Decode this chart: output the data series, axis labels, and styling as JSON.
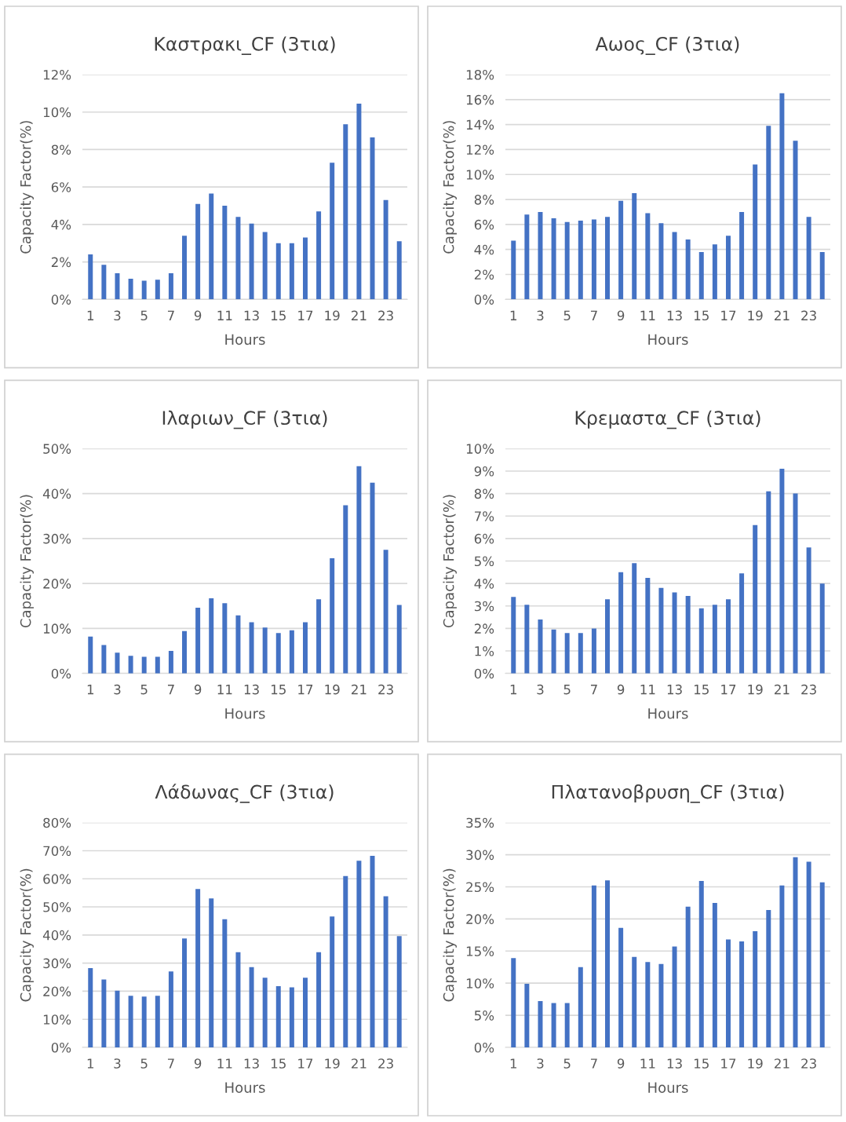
{
  "chart_data": [
    {
      "type": "bar",
      "title": "Καστρακι_CF (3τια)",
      "xlabel": "Hours",
      "ylabel": "Capacity Factor(%)",
      "color": "#4472c4",
      "grid": "y",
      "categories": [
        "1",
        null,
        "3",
        null,
        "5",
        null,
        "7",
        null,
        "9",
        null,
        "11",
        null,
        "13",
        null,
        "15",
        null,
        "17",
        null,
        "19",
        null,
        "21",
        null,
        "23",
        null
      ],
      "values": [
        2.4,
        1.85,
        1.4,
        1.1,
        1.0,
        1.05,
        1.4,
        3.4,
        5.1,
        5.65,
        5.0,
        4.4,
        4.05,
        3.6,
        3.0,
        3.0,
        3.3,
        4.7,
        7.3,
        9.35,
        10.45,
        8.65,
        5.3,
        3.1
      ],
      "ylim": [
        0,
        12
      ],
      "yticks": [
        {
          "value": 0,
          "label": "0%"
        },
        {
          "value": 2,
          "label": "2%"
        },
        {
          "value": 4,
          "label": "4%"
        },
        {
          "value": 6,
          "label": "6%"
        },
        {
          "value": 8,
          "label": "8%"
        },
        {
          "value": 10,
          "label": "10%"
        },
        {
          "value": 12,
          "label": "12%"
        }
      ]
    },
    {
      "type": "bar",
      "title": "Αωος_CF (3τια)",
      "xlabel": "Hours",
      "ylabel": "Capacity Factor(%)",
      "color": "#4472c4",
      "grid": "y",
      "categories": [
        "1",
        null,
        "3",
        null,
        "5",
        null,
        "7",
        null,
        "9",
        null,
        "11",
        null,
        "13",
        null,
        "15",
        null,
        "17",
        null,
        "19",
        null,
        "21",
        null,
        "23",
        null
      ],
      "values": [
        4.7,
        6.8,
        7.0,
        6.5,
        6.2,
        6.3,
        6.4,
        6.6,
        7.9,
        8.5,
        6.9,
        6.1,
        5.4,
        4.8,
        3.8,
        4.4,
        5.1,
        7.0,
        10.8,
        13.9,
        16.5,
        12.7,
        6.6,
        3.8
      ],
      "ylim": [
        0,
        18
      ],
      "yticks": [
        {
          "value": 0,
          "label": "0%"
        },
        {
          "value": 2,
          "label": "2%"
        },
        {
          "value": 4,
          "label": "4%"
        },
        {
          "value": 6,
          "label": "6%"
        },
        {
          "value": 8,
          "label": "8%"
        },
        {
          "value": 10,
          "label": "10%"
        },
        {
          "value": 12,
          "label": "12%"
        },
        {
          "value": 14,
          "label": "14%"
        },
        {
          "value": 16,
          "label": "16%"
        },
        {
          "value": 18,
          "label": "18%"
        }
      ]
    },
    {
      "type": "bar",
      "title": "Ιλαριων_CF (3τια)",
      "xlabel": "Hours",
      "ylabel": "Capacity Factor(%)",
      "color": "#4472c4",
      "grid": "y",
      "categories": [
        "1",
        null,
        "3",
        null,
        "5",
        null,
        "7",
        null,
        "9",
        null,
        "11",
        null,
        "13",
        null,
        "15",
        null,
        "17",
        null,
        "19",
        null,
        "21",
        null,
        "23",
        null
      ],
      "values": [
        8.2,
        6.3,
        4.6,
        3.9,
        3.7,
        3.7,
        5.0,
        9.4,
        14.6,
        16.7,
        15.6,
        12.9,
        11.4,
        10.2,
        9.0,
        9.6,
        11.4,
        16.5,
        25.6,
        37.4,
        46.1,
        42.4,
        27.5,
        15.2
      ],
      "ylim": [
        0,
        50
      ],
      "yticks": [
        {
          "value": 0,
          "label": "0%"
        },
        {
          "value": 10,
          "label": "10%"
        },
        {
          "value": 20,
          "label": "20%"
        },
        {
          "value": 30,
          "label": "30%"
        },
        {
          "value": 40,
          "label": "40%"
        },
        {
          "value": 50,
          "label": "50%"
        }
      ]
    },
    {
      "type": "bar",
      "title": "Κρεμαστα_CF (3τια)",
      "xlabel": "Hours",
      "ylabel": "Capacity Factor(%)",
      "color": "#4472c4",
      "grid": "y",
      "categories": [
        "1",
        null,
        "3",
        null,
        "5",
        null,
        "7",
        null,
        "9",
        null,
        "11",
        null,
        "13",
        null,
        "15",
        null,
        "17",
        null,
        "19",
        null,
        "21",
        null,
        "23",
        null
      ],
      "values": [
        3.4,
        3.05,
        2.4,
        1.95,
        1.8,
        1.8,
        2.0,
        3.3,
        4.5,
        4.9,
        4.25,
        3.8,
        3.6,
        3.45,
        2.9,
        3.05,
        3.3,
        4.45,
        6.6,
        8.1,
        9.1,
        8.0,
        5.6,
        4.0
      ],
      "ylim": [
        0,
        10
      ],
      "yticks": [
        {
          "value": 0,
          "label": "0%"
        },
        {
          "value": 1,
          "label": "1%"
        },
        {
          "value": 2,
          "label": "2%"
        },
        {
          "value": 3,
          "label": "3%"
        },
        {
          "value": 4,
          "label": "4%"
        },
        {
          "value": 5,
          "label": "5%"
        },
        {
          "value": 6,
          "label": "6%"
        },
        {
          "value": 7,
          "label": "7%"
        },
        {
          "value": 8,
          "label": "8%"
        },
        {
          "value": 9,
          "label": "9%"
        },
        {
          "value": 10,
          "label": "10%"
        }
      ]
    },
    {
      "type": "bar",
      "title": "Λάδωνας_CF (3τια)",
      "xlabel": "Hours",
      "ylabel": "Capacity Factor(%)",
      "color": "#4472c4",
      "grid": "y",
      "categories": [
        "1",
        null,
        "3",
        null,
        "5",
        null,
        "7",
        null,
        "9",
        null,
        "11",
        null,
        "13",
        null,
        "15",
        null,
        "17",
        null,
        "19",
        null,
        "21",
        null,
        "23",
        null
      ],
      "values": [
        28.2,
        24.2,
        20.2,
        18.4,
        18.1,
        18.4,
        27.0,
        38.8,
        56.4,
        53.0,
        45.6,
        33.9,
        28.6,
        24.8,
        21.8,
        21.4,
        24.8,
        33.9,
        46.6,
        61.0,
        66.4,
        68.2,
        53.8,
        39.6
      ],
      "ylim": [
        0,
        80
      ],
      "yticks": [
        {
          "value": 0,
          "label": "0%"
        },
        {
          "value": 10,
          "label": "10%"
        },
        {
          "value": 20,
          "label": "20%"
        },
        {
          "value": 30,
          "label": "30%"
        },
        {
          "value": 40,
          "label": "40%"
        },
        {
          "value": 50,
          "label": "50%"
        },
        {
          "value": 60,
          "label": "60%"
        },
        {
          "value": 70,
          "label": "70%"
        },
        {
          "value": 80,
          "label": "80%"
        }
      ]
    },
    {
      "type": "bar",
      "title": "Πλατανοβρυση_CF (3τια)",
      "xlabel": "Hours",
      "ylabel": "Capacity Factor(%)",
      "color": "#4472c4",
      "grid": "y",
      "categories": [
        "1",
        null,
        "3",
        null,
        "5",
        null,
        "7",
        null,
        "9",
        null,
        "11",
        null,
        "13",
        null,
        "15",
        null,
        "17",
        null,
        "19",
        null,
        "21",
        null,
        "23",
        null
      ],
      "values": [
        13.9,
        9.9,
        7.2,
        6.9,
        6.9,
        12.5,
        25.2,
        26.0,
        18.6,
        14.1,
        13.3,
        13.0,
        15.7,
        21.9,
        25.9,
        22.5,
        16.8,
        16.5,
        18.1,
        21.4,
        25.2,
        29.6,
        28.9,
        25.7
      ],
      "ylim": [
        0,
        35
      ],
      "yticks": [
        {
          "value": 0,
          "label": "0%"
        },
        {
          "value": 5,
          "label": "5%"
        },
        {
          "value": 10,
          "label": "10%"
        },
        {
          "value": 15,
          "label": "15%"
        },
        {
          "value": 20,
          "label": "20%"
        },
        {
          "value": 25,
          "label": "25%"
        },
        {
          "value": 30,
          "label": "30%"
        },
        {
          "value": 35,
          "label": "35%"
        }
      ]
    }
  ]
}
